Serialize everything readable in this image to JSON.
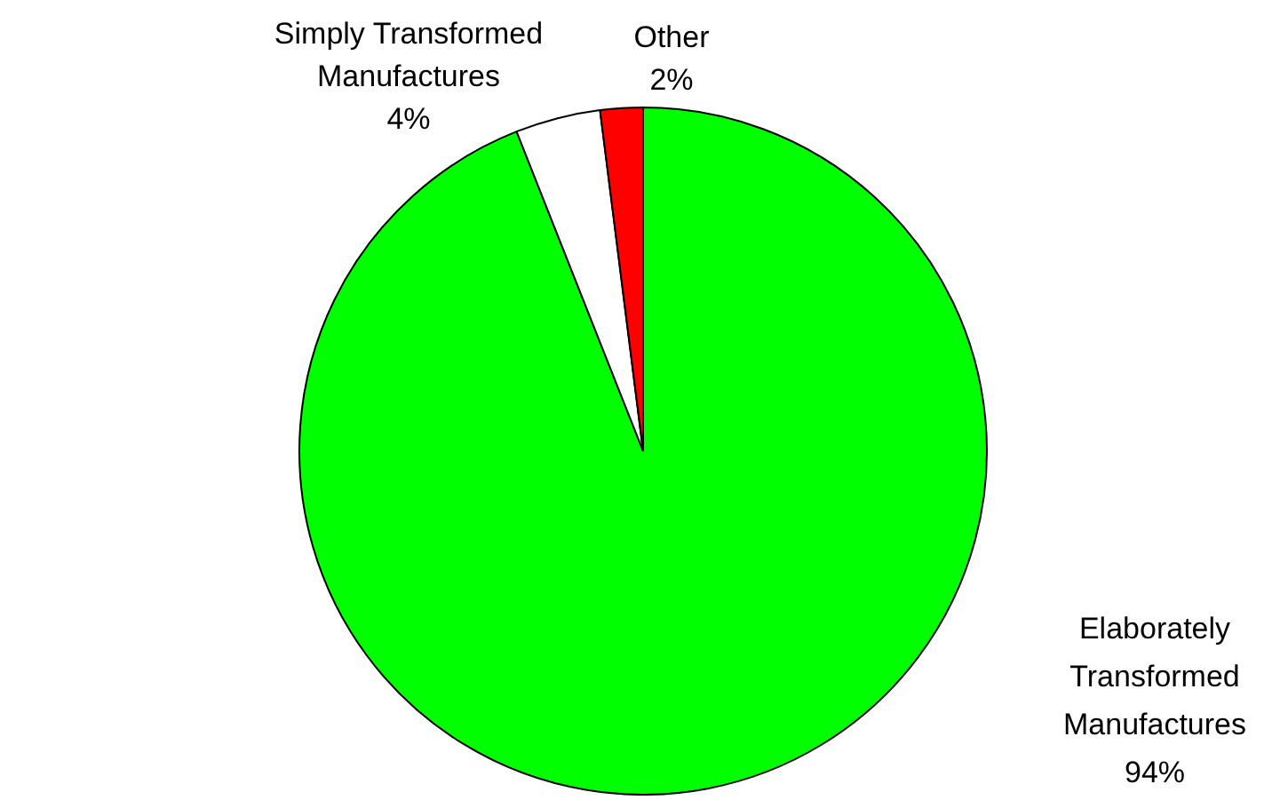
{
  "chart_data": {
    "type": "pie",
    "categories": [
      "Elaborately Transformed Manufactures",
      "Simply Transformed Manufactures",
      "Other"
    ],
    "values": [
      94,
      4,
      2
    ],
    "value_labels": [
      "94%",
      "4%",
      "2%"
    ],
    "colors": [
      "#00ff00",
      "#ffffff",
      "#ff0000"
    ],
    "legend": false
  }
}
